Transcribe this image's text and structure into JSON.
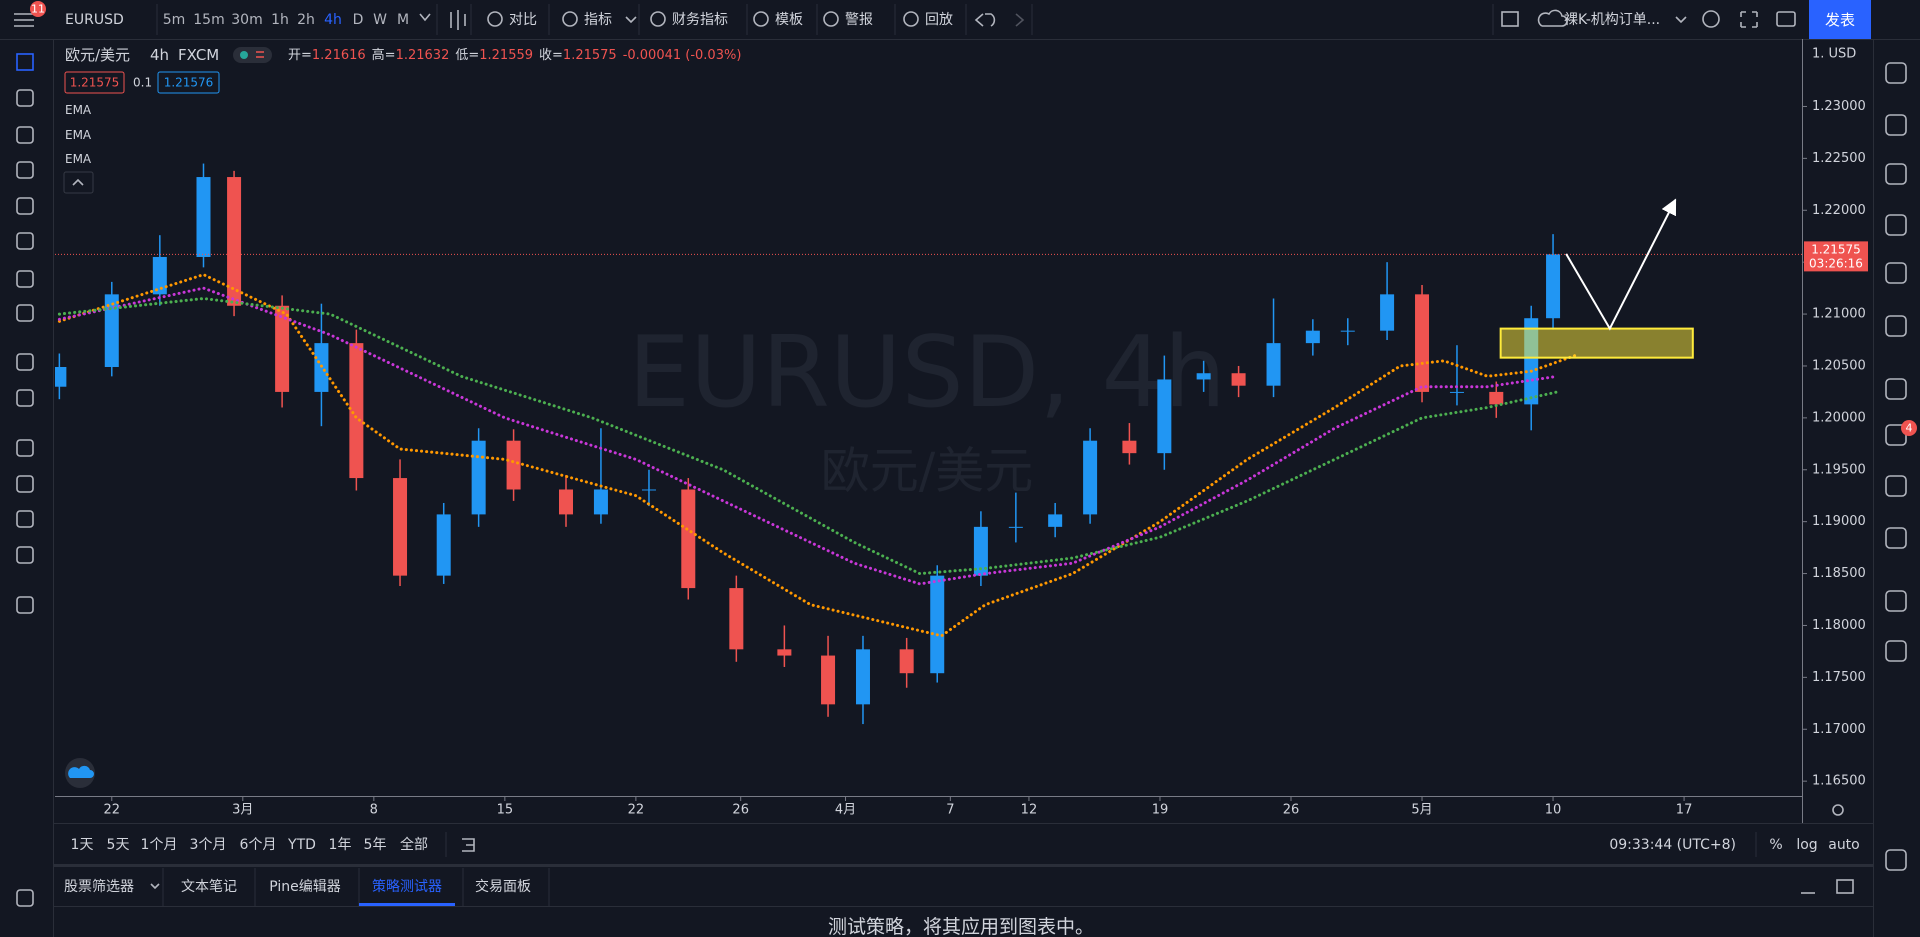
{
  "header": {
    "badge": "11",
    "symbol": "EURUSD",
    "intervals": [
      "5m",
      "15m",
      "30m",
      "1h",
      "2h",
      "4h",
      "D",
      "W",
      "M"
    ],
    "active_interval": "4h",
    "tools": [
      "对比",
      "指标",
      "财务指标",
      "模板",
      "警报",
      "回放"
    ],
    "layout_name": "裸K-机构订单...",
    "publish": "发表"
  },
  "legend": {
    "name": "欧元/美元",
    "interval": "4h",
    "exchange": "FXCM",
    "ohlc": [
      {
        "label": "开=",
        "value": "1.21616"
      },
      {
        "label": "高=",
        "value": "1.21632"
      },
      {
        "label": "低=",
        "value": "1.21559"
      },
      {
        "label": "收=",
        "value": "1.21575"
      }
    ],
    "change": "-0.00041 (-0.03%)",
    "bid": "1.21575",
    "spread": "0.1",
    "ask": "1.21576"
  },
  "chart_data": {
    "type": "candlestick",
    "watermark": "EURUSD, 4h",
    "watermark_subtitle": "欧元/美元",
    "currency": "1. USD",
    "x": [
      -12,
      0,
      11,
      21,
      28,
      39,
      48,
      56,
      66,
      76,
      84,
      92,
      104,
      112,
      123,
      132,
      143,
      154,
      164,
      172,
      182,
      189,
      199,
      207,
      216,
      224,
      233,
      241,
      250,
      258,
      266,
      275,
      283,
      292,
      300,
      308,
      317,
      325,
      330
    ],
    "open": [
      1.203,
      1.2049,
      1.2119,
      1.2155,
      1.2232,
      1.2108,
      1.2025,
      1.2072,
      1.1942,
      1.1848,
      1.1907,
      1.1978,
      1.1931,
      1.1907,
      1.1931,
      1.1931,
      1.1836,
      1.1777,
      1.1771,
      1.1724,
      1.1777,
      1.1754,
      1.1848,
      1.1895,
      1.1895,
      1.1907,
      1.1978,
      1.1966,
      1.2037,
      1.2043,
      1.2031,
      1.2072,
      1.2084,
      1.2084,
      1.2119,
      1.2025,
      1.2025,
      1.2013,
      1.2096
    ],
    "high": [
      1.2062,
      1.2131,
      1.2176,
      1.2245,
      1.2238,
      1.2118,
      1.211,
      1.2085,
      1.196,
      1.1918,
      1.199,
      1.1989,
      1.1945,
      1.199,
      1.195,
      1.1942,
      1.1848,
      1.18,
      1.179,
      1.179,
      1.1788,
      1.1858,
      1.191,
      1.1928,
      1.1918,
      1.199,
      1.1995,
      1.206,
      1.2055,
      1.205,
      1.2115,
      1.2095,
      1.2096,
      1.215,
      1.2128,
      1.207,
      1.2035,
      1.2108,
      1.2177
    ],
    "low": [
      1.2018,
      1.204,
      1.2108,
      1.2145,
      1.2098,
      1.201,
      1.1992,
      1.193,
      1.1838,
      1.184,
      1.1895,
      1.192,
      1.1895,
      1.1898,
      1.1915,
      1.1825,
      1.1765,
      1.176,
      1.1712,
      1.1705,
      1.174,
      1.1745,
      1.1838,
      1.188,
      1.1885,
      1.1898,
      1.1955,
      1.195,
      1.2025,
      1.202,
      1.202,
      1.206,
      1.207,
      1.2075,
      1.2015,
      1.2012,
      1.2,
      1.1988,
      1.2085
    ],
    "close": [
      1.2049,
      1.2119,
      1.2155,
      1.2232,
      1.2108,
      1.2025,
      1.2072,
      1.1942,
      1.1848,
      1.1907,
      1.1978,
      1.1931,
      1.1907,
      1.1931,
      1.1931,
      1.1836,
      1.1777,
      1.1771,
      1.1724,
      1.1777,
      1.1754,
      1.1848,
      1.1895,
      1.1895,
      1.1907,
      1.1978,
      1.1966,
      1.2037,
      1.2043,
      1.2031,
      1.2072,
      1.2084,
      1.2084,
      1.2119,
      1.2025,
      1.2025,
      1.2013,
      1.2096,
      1.21575
    ],
    "up_color": "#2196f3",
    "down_color": "#ef5350",
    "series": [
      {
        "name": "EMA",
        "color": "#ff9800",
        "x": [
          -12,
          21,
          40,
          56,
          66,
          90,
          120,
          140,
          160,
          180,
          190,
          200,
          220,
          240,
          260,
          280,
          295,
          305,
          315,
          325,
          335
        ],
        "values": [
          1.2093,
          1.2138,
          1.21,
          1.2,
          1.197,
          1.196,
          1.1925,
          1.187,
          1.182,
          1.18,
          1.179,
          1.182,
          1.185,
          1.19,
          1.196,
          1.201,
          1.205,
          1.2055,
          1.204,
          1.2045,
          1.206
        ]
      },
      {
        "name": "EMA",
        "color": "#c837d8",
        "x": [
          -12,
          21,
          50,
          90,
          120,
          150,
          170,
          185,
          200,
          220,
          240,
          260,
          280,
          300,
          315,
          331
        ],
        "values": [
          1.2095,
          1.2125,
          1.208,
          1.2,
          1.196,
          1.19,
          1.186,
          1.184,
          1.185,
          1.186,
          1.1895,
          1.194,
          1.199,
          1.203,
          1.203,
          1.204
        ]
      },
      {
        "name": "EMA",
        "color": "#4caf50",
        "x": [
          -12,
          21,
          50,
          80,
          110,
          140,
          170,
          185,
          200,
          220,
          240,
          260,
          280,
          300,
          315,
          331
        ],
        "values": [
          1.21,
          1.2115,
          1.21,
          1.204,
          1.2,
          1.195,
          1.188,
          1.185,
          1.1855,
          1.1865,
          1.1885,
          1.192,
          1.196,
          1.2,
          1.201,
          1.2025
        ]
      }
    ],
    "last_price": 1.21575,
    "last_price_label": "1.21575",
    "countdown": "03:26:16",
    "xlim": [
      -13,
      387
    ],
    "ylim": [
      1.16357,
      1.2365
    ],
    "xticks": [
      {
        "value": 0,
        "label": "22"
      },
      {
        "value": 30,
        "label": "3月"
      },
      {
        "value": 60,
        "label": "8"
      },
      {
        "value": 90,
        "label": "15"
      },
      {
        "value": 120,
        "label": "22"
      },
      {
        "value": 144,
        "label": "26"
      },
      {
        "value": 168,
        "label": "4月"
      },
      {
        "value": 192,
        "label": "7"
      },
      {
        "value": 210,
        "label": "12"
      },
      {
        "value": 240,
        "label": "19"
      },
      {
        "value": 270,
        "label": "26"
      },
      {
        "value": 300,
        "label": "5月"
      },
      {
        "value": 330,
        "label": "10"
      },
      {
        "value": 360,
        "label": "17"
      }
    ],
    "yticks": [
      {
        "value": 1.165,
        "label": "1.16500"
      },
      {
        "value": 1.17,
        "label": "1.17000"
      },
      {
        "value": 1.175,
        "label": "1.17500"
      },
      {
        "value": 1.18,
        "label": "1.18000"
      },
      {
        "value": 1.185,
        "label": "1.18500"
      },
      {
        "value": 1.19,
        "label": "1.19000"
      },
      {
        "value": 1.195,
        "label": "1.19500"
      },
      {
        "value": 1.2,
        "label": "1.20000"
      },
      {
        "value": 1.205,
        "label": "1.20500"
      },
      {
        "value": 1.21,
        "label": "1.21000"
      },
      {
        "value": 1.215,
        "label": "1.21500"
      },
      {
        "value": 1.22,
        "label": "1.22000"
      },
      {
        "value": 1.225,
        "label": "1.22500"
      },
      {
        "value": 1.23,
        "label": "1.23000"
      }
    ],
    "grid": false,
    "drawings": {
      "zone": {
        "x": [
          318,
          362
        ],
        "y": [
          1.2058,
          1.2086
        ],
        "color": "#ffeb3b"
      },
      "arrow": {
        "x": [
          333,
          343,
          358
        ],
        "y": [
          1.2158,
          1.2086,
          1.221
        ],
        "color": "#ffffff"
      }
    }
  },
  "footer": {
    "ranges": [
      "1天",
      "5天",
      "1个月",
      "3个月",
      "6个月",
      "YTD",
      "1年",
      "5年",
      "全部"
    ],
    "clock": "09:33:44 (UTC+8)",
    "scale_options": [
      "%",
      "log",
      "auto"
    ],
    "tabs": [
      "股票筛选器",
      "文本笔记",
      "Pine编辑器",
      "策略测试器",
      "交易面板"
    ],
    "active_tab": "策略测试器",
    "message": "测试策略，将其应用到图表中。",
    "notification_badge": "4"
  }
}
